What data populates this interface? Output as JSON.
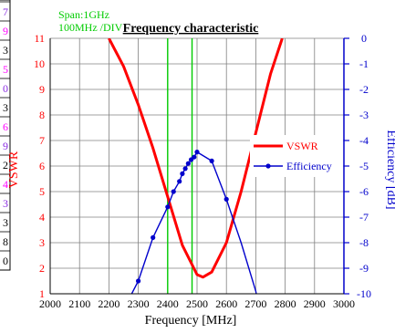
{
  "colors": {
    "vswr": "#ff0000",
    "efficiency": "#0000cc",
    "band_lines": "#00cc00",
    "span_text": "#00cc00",
    "grid": "#808080",
    "axis_left_text": "#ff0000",
    "axis_right_text": "#0000cc",
    "left_strip": [
      "#8a2be2",
      "#ff00ff",
      "#000000",
      "#ff00ff",
      "#8a2be2",
      "#000000",
      "#ff00ff",
      "#8a2be2",
      "#000000",
      "#ff00ff",
      "#8a2be2",
      "#000000",
      "#000000",
      "#000000"
    ]
  },
  "annotations": {
    "span_line1": "Span:1GHz",
    "span_line2": "100MHz /DIV"
  },
  "left_strip_values": [
    "7",
    "9",
    "3",
    "5",
    "0",
    "3",
    "6",
    "9",
    "2",
    "4",
    "3",
    "3",
    "8",
    "0"
  ],
  "chart_data": {
    "type": "line",
    "title": "Frequency characteristic",
    "xlabel": "Frequency [MHz]",
    "ylabel": "VSWR",
    "y2label": "Efficiency [dB]",
    "xlim": [
      2000,
      3000
    ],
    "ylim": [
      1,
      11
    ],
    "y2lim": [
      -10,
      0
    ],
    "x_ticks": [
      2000,
      2100,
      2200,
      2300,
      2400,
      2500,
      2600,
      2700,
      2800,
      2900,
      3000
    ],
    "y_ticks": [
      1,
      2,
      3,
      4,
      5,
      6,
      7,
      8,
      9,
      10,
      11
    ],
    "y2_ticks": [
      0,
      -1,
      -2,
      -3,
      -4,
      -5,
      -6,
      -7,
      -8,
      -9,
      -10
    ],
    "grid": true,
    "legend_position": "right",
    "vertical_markers": [
      2400,
      2483
    ],
    "series": [
      {
        "name": "VSWR",
        "axis": "left",
        "x": [
          2200,
          2250,
          2300,
          2350,
          2400,
          2450,
          2500,
          2520,
          2550,
          2600,
          2650,
          2700,
          2750,
          2790
        ],
        "values": [
          11.0,
          9.9,
          8.4,
          6.7,
          4.8,
          2.9,
          1.75,
          1.65,
          1.85,
          3.0,
          5.0,
          7.3,
          9.6,
          11.0
        ]
      },
      {
        "name": "Efficiency",
        "axis": "right",
        "x": [
          2210,
          2300,
          2350,
          2400,
          2420,
          2440,
          2450,
          2460,
          2470,
          2480,
          2490,
          2500,
          2550,
          2600,
          2650,
          2700,
          2705
        ],
        "values": [
          -11.5,
          -9.5,
          -7.8,
          -6.6,
          -6.0,
          -5.6,
          -5.3,
          -5.1,
          -4.9,
          -4.75,
          -4.65,
          -4.45,
          -4.8,
          -6.3,
          -8.0,
          -9.9,
          -10.2
        ],
        "markers": [
          false,
          true,
          true,
          true,
          true,
          true,
          true,
          true,
          true,
          true,
          true,
          true,
          true,
          true,
          false,
          false,
          false
        ]
      }
    ]
  }
}
